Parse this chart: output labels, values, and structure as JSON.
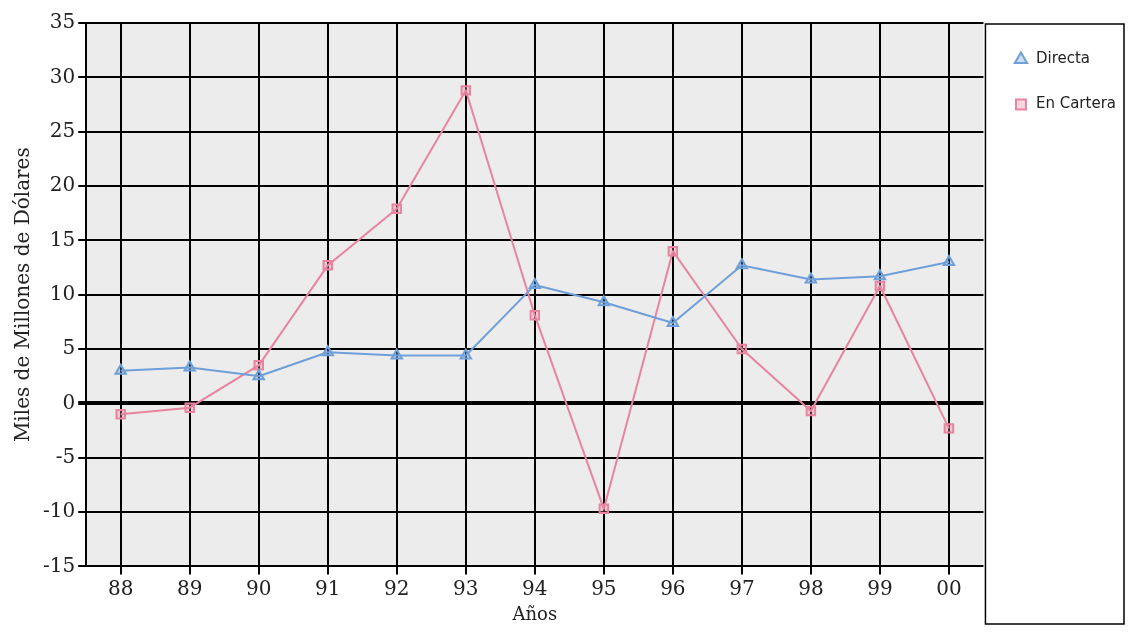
{
  "chart_data": {
    "type": "line",
    "xlabel": "Años",
    "ylabel": "Miles de Millones de Dólares",
    "categories": [
      "88",
      "89",
      "90",
      "91",
      "92",
      "93",
      "94",
      "95",
      "96",
      "97",
      "98",
      "99",
      "00"
    ],
    "series": [
      {
        "name": "Directa",
        "color": "#6f9fd8",
        "marker": "triangle",
        "values": [
          3.0,
          3.3,
          2.5,
          4.7,
          4.4,
          4.4,
          10.9,
          9.3,
          7.4,
          12.7,
          11.4,
          11.7,
          13.0
        ]
      },
      {
        "name": "En Cartera",
        "color": "#e8849f",
        "marker": "square",
        "values": [
          -1.0,
          -0.4,
          3.5,
          12.7,
          17.9,
          28.8,
          8.1,
          -9.7,
          14.0,
          5.0,
          -0.7,
          10.8,
          -2.3
        ]
      }
    ],
    "ylim": [
      -15,
      35
    ],
    "yticks": [
      -15,
      -10,
      -5,
      0,
      5,
      10,
      15,
      20,
      25,
      30,
      35
    ],
    "grid": true,
    "legend": "right",
    "line_style": "solid"
  }
}
